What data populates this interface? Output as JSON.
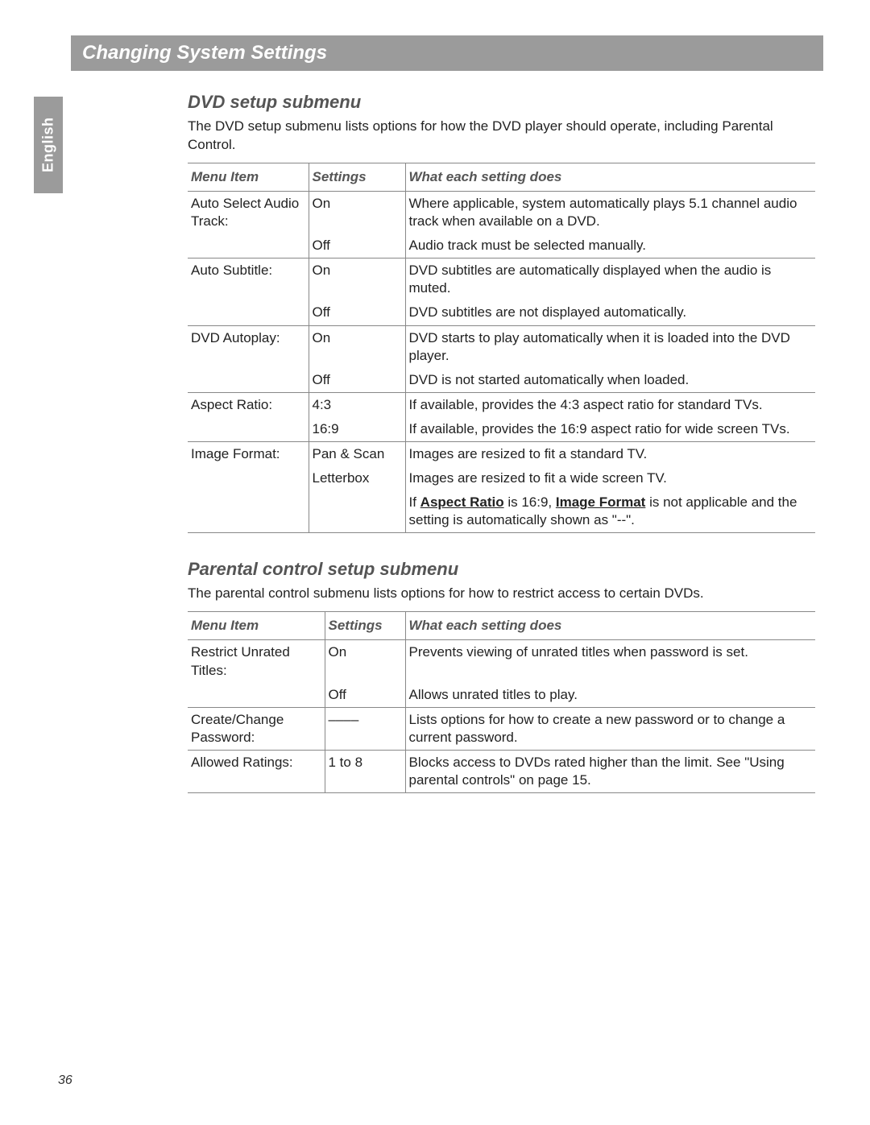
{
  "page_number": "36",
  "language_tab": "English",
  "title_bar": "Changing System Settings",
  "section1": {
    "heading": "DVD setup submenu",
    "intro": "The DVD setup submenu lists options for how the DVD player should operate, including Parental Control.",
    "headers": {
      "c1": "Menu Item",
      "c2": "Settings",
      "c3": "What each setting does"
    },
    "rows": [
      {
        "menu": "Auto Select Audio Track:",
        "setting": "On",
        "desc": "Where applicable, system automatically plays 5.1 channel audio track when available on a DVD.",
        "top": true
      },
      {
        "menu": "",
        "setting": "Off",
        "desc": "Audio track must be selected manually."
      },
      {
        "menu": "Auto Subtitle:",
        "setting": "On",
        "desc": "DVD subtitles are automatically displayed when the audio is muted.",
        "top": true
      },
      {
        "menu": "",
        "setting": "Off",
        "desc": "DVD subtitles are not displayed automatically."
      },
      {
        "menu": "DVD Autoplay:",
        "setting": "On",
        "desc": "DVD starts to play automatically when it is loaded into the DVD player.",
        "top": true
      },
      {
        "menu": "",
        "setting": "Off",
        "desc": "DVD is not started automatically when loaded."
      },
      {
        "menu": "Aspect Ratio:",
        "setting": "4:3",
        "desc": "If available, provides the 4:3 aspect ratio for standard TVs.",
        "top": true
      },
      {
        "menu": "",
        "setting": "16:9",
        "desc": "If available, provides the 16:9 aspect ratio for wide screen TVs."
      },
      {
        "menu": "Image Format:",
        "setting": "Pan & Scan",
        "desc": "Images are resized to fit a standard TV.",
        "top": true
      },
      {
        "menu": "",
        "setting": "Letterbox",
        "desc": "Images are resized to fit a wide screen TV."
      }
    ],
    "note": {
      "pre": "If ",
      "b1": "Aspect Ratio",
      "mid": " is 16:9, ",
      "b2": "Image Format",
      "post": " is not applicable and the setting is automatically shown as \"--\"."
    }
  },
  "section2": {
    "heading": "Parental control setup submenu",
    "intro": "The parental control submenu lists options for how to restrict access to certain DVDs.",
    "headers": {
      "c1": "Menu Item",
      "c2": "Settings",
      "c3": "What each setting does"
    },
    "rows": [
      {
        "menu": "Restrict Unrated Titles:",
        "setting": "On",
        "desc": "Prevents viewing of unrated titles when password is set.",
        "top": true
      },
      {
        "menu": "",
        "setting": "Off",
        "desc": "Allows unrated titles to play."
      },
      {
        "menu": "Create/Change Password:",
        "setting": "––––",
        "desc": "Lists options for how to create a new password or to change a current password.",
        "top": true
      },
      {
        "menu": "Allowed Ratings:",
        "setting": "1 to 8",
        "desc": "Blocks access to DVDs rated higher than the limit. See \"Using parental controls\" on page 15.",
        "top": true,
        "bottom": true
      }
    ]
  }
}
